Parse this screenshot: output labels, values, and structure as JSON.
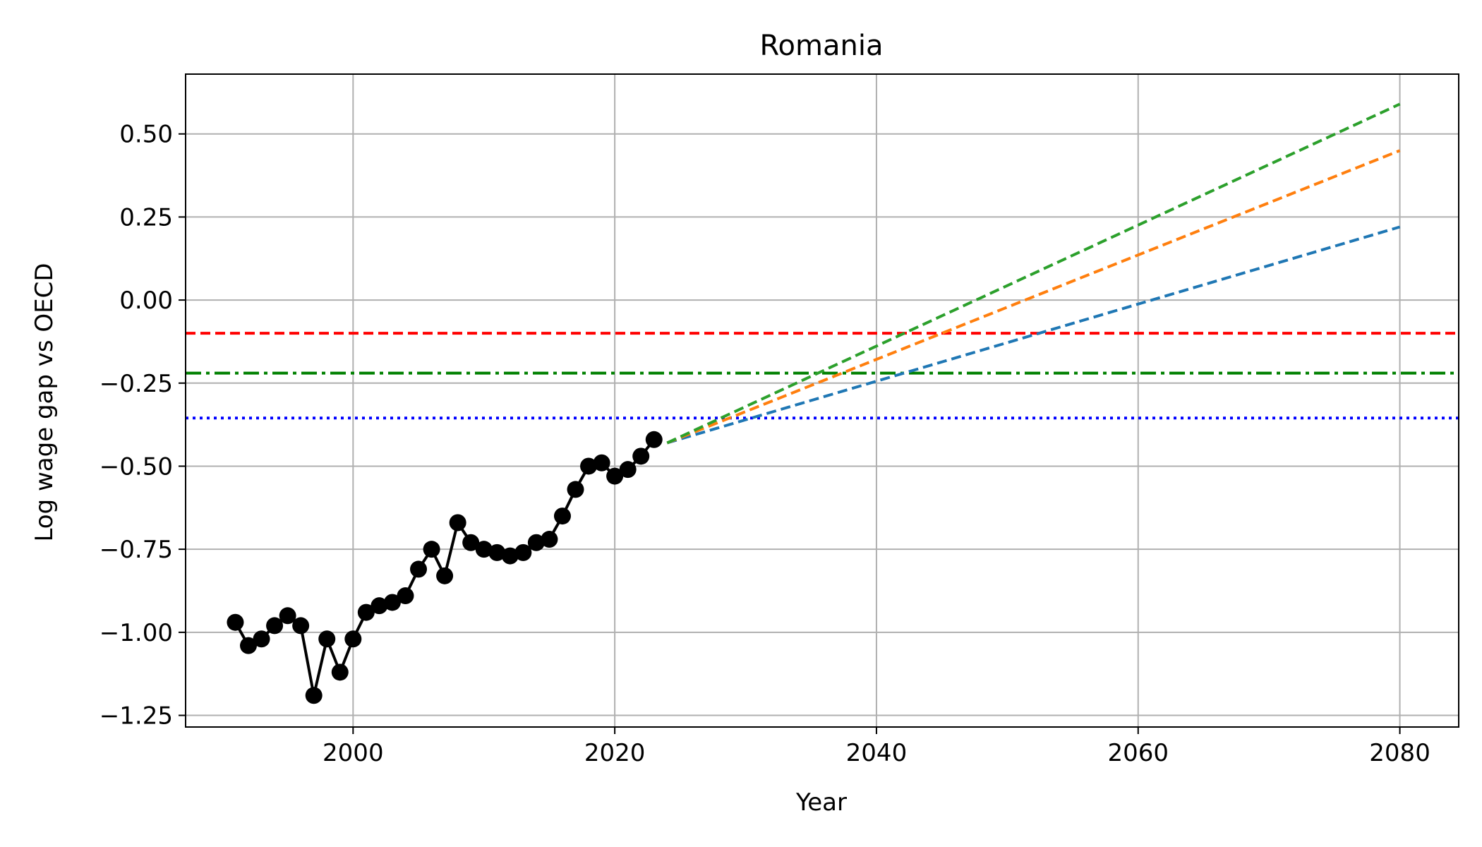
{
  "chart_data": {
    "type": "line",
    "title": "Romania",
    "xlabel": "Year",
    "ylabel": "Log wage gap vs OECD",
    "xlim": [
      1987.2,
      2084.5
    ],
    "ylim": [
      -1.285,
      0.68
    ],
    "xticks": [
      2000,
      2020,
      2040,
      2060,
      2080
    ],
    "yticks": [
      -1.25,
      -1.0,
      -0.75,
      -0.5,
      -0.25,
      0.0,
      0.25,
      0.5
    ],
    "xtick_labels": [
      "2000",
      "2020",
      "2040",
      "2060",
      "2080"
    ],
    "ytick_labels": [
      "−1.25",
      "−1.00",
      "−0.75",
      "−0.50",
      "−0.25",
      "0.00",
      "0.25",
      "0.50"
    ],
    "grid": true,
    "legend": null,
    "series": [
      {
        "style": "solid",
        "marker": "circle",
        "color": "#000000",
        "x": [
          1991,
          1992,
          1993,
          1994,
          1995,
          1996,
          1997,
          1998,
          1999,
          2000,
          2001,
          2002,
          2003,
          2004,
          2005,
          2006,
          2007,
          2008,
          2009,
          2010,
          2011,
          2012,
          2013,
          2014,
          2015,
          2016,
          2017,
          2018,
          2019,
          2020,
          2021,
          2022,
          2023
        ],
        "y": [
          -0.97,
          -1.04,
          -1.02,
          -0.98,
          -0.95,
          -0.98,
          -1.19,
          -1.02,
          -1.12,
          -1.02,
          -0.94,
          -0.92,
          -0.91,
          -0.89,
          -0.81,
          -0.75,
          -0.83,
          -0.67,
          -0.73,
          -0.75,
          -0.76,
          -0.77,
          -0.76,
          -0.73,
          -0.72,
          -0.65,
          -0.57,
          -0.5,
          -0.49,
          -0.53,
          -0.51,
          -0.47,
          -0.42
        ]
      },
      {
        "style": "dashed",
        "color": "#1f77b4",
        "x": [
          2024,
          2080
        ],
        "y": [
          -0.43,
          0.22
        ]
      },
      {
        "style": "dashed",
        "color": "#ff7f0e",
        "x": [
          2024,
          2080
        ],
        "y": [
          -0.43,
          0.45
        ]
      },
      {
        "style": "dashed",
        "color": "#2ca02c",
        "x": [
          2024,
          2080
        ],
        "y": [
          -0.43,
          0.59
        ]
      }
    ],
    "hlines": [
      {
        "y": -0.1,
        "style": "dashed",
        "color": "#ff0000"
      },
      {
        "y": -0.22,
        "style": "dashdot",
        "color": "#008000"
      },
      {
        "y": -0.355,
        "style": "dotted",
        "color": "#0000ff"
      }
    ]
  }
}
